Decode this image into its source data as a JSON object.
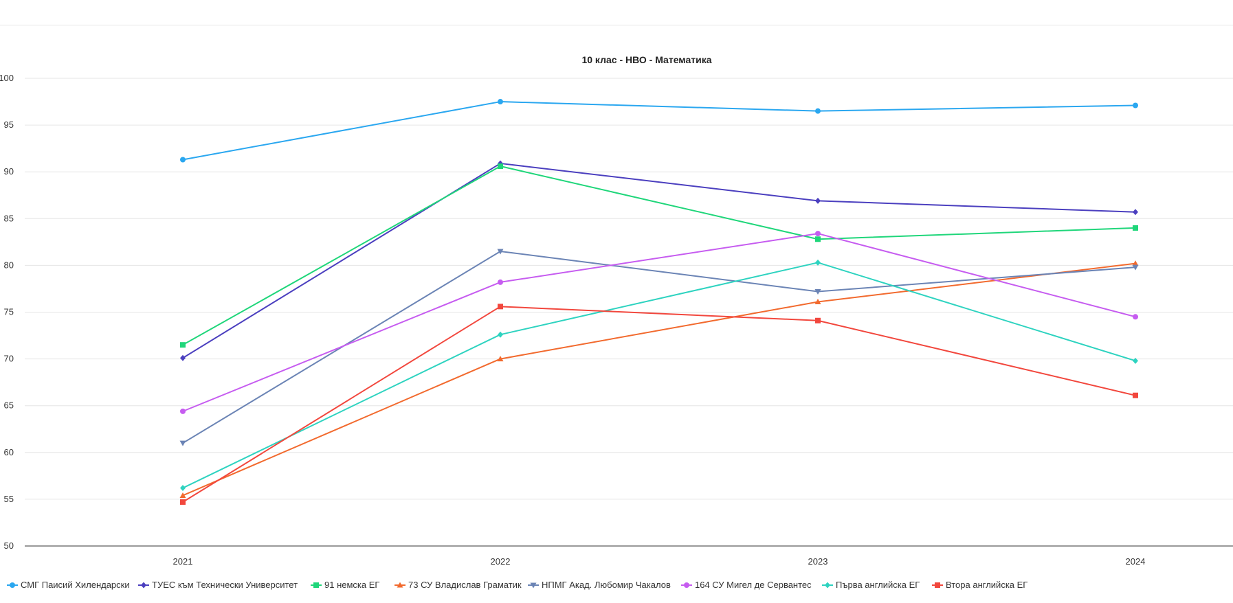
{
  "chart_data": {
    "type": "line",
    "title": "10 клас - НВО - Математика",
    "xlabel": "",
    "ylabel": "",
    "categories": [
      "2021",
      "2022",
      "2023",
      "2024"
    ],
    "ylim": [
      50,
      100
    ],
    "yticks": [
      50,
      55,
      60,
      65,
      70,
      75,
      80,
      85,
      90,
      95,
      100
    ],
    "grid": true,
    "legend_position": "bottom",
    "series": [
      {
        "name": "СМГ Паисий Хилендарски",
        "color": "#2aa7f0",
        "marker": "circle",
        "values": [
          91.3,
          97.5,
          96.5,
          97.1
        ]
      },
      {
        "name": "ТУЕС към Технически Университет",
        "color": "#4b3fbf",
        "marker": "diamond",
        "values": [
          70.1,
          90.9,
          86.9,
          85.7
        ]
      },
      {
        "name": "91 немска ЕГ",
        "color": "#1fd67a",
        "marker": "square",
        "values": [
          71.5,
          90.6,
          82.8,
          84.0
        ]
      },
      {
        "name": "73 СУ Владислав Граматик",
        "color": "#f26a2e",
        "marker": "triangle",
        "values": [
          55.4,
          70.0,
          76.1,
          80.2
        ]
      },
      {
        "name": "НПМГ Акад. Любомир Чакалов",
        "color": "#6b84b5",
        "marker": "triangle-down",
        "values": [
          61.0,
          81.5,
          77.2,
          79.8
        ]
      },
      {
        "name": "164 СУ Мигел де Сервантес",
        "color": "#c65cf0",
        "marker": "circle",
        "values": [
          64.4,
          78.2,
          83.4,
          74.5
        ]
      },
      {
        "name": "Първа английска ЕГ",
        "color": "#2ed3c0",
        "marker": "diamond",
        "values": [
          56.2,
          72.6,
          80.3,
          69.8
        ]
      },
      {
        "name": "Втора английска ЕГ",
        "color": "#f2473d",
        "marker": "square",
        "values": [
          54.7,
          75.6,
          74.1,
          66.1
        ]
      }
    ]
  }
}
